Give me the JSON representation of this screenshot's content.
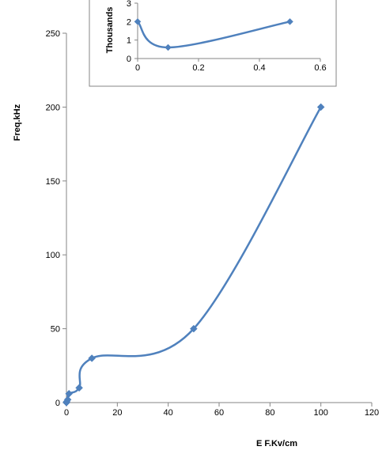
{
  "chart_data": [
    {
      "type": "line",
      "xlabel": "E F.Kv/cm",
      "ylabel": "Freq.kHz",
      "xlim": [
        0,
        120
      ],
      "ylim": [
        0,
        250
      ],
      "x_ticks": [
        "0",
        "20",
        "40",
        "60",
        "80",
        "100",
        "120"
      ],
      "y_ticks": [
        "0",
        "50",
        "100",
        "150",
        "200",
        "250"
      ],
      "grid": false,
      "legend": "none",
      "series": [
        {
          "color": "#4f81bd",
          "marker": "diamond",
          "smooth": true,
          "points": [
            {
              "x": 0,
              "y": 0
            },
            {
              "x": 0.1,
              "y": 0.6
            },
            {
              "x": 0.5,
              "y": 2
            },
            {
              "x": 1,
              "y": 6
            },
            {
              "x": 5,
              "y": 10
            },
            {
              "x": 10,
              "y": 30
            },
            {
              "x": 50,
              "y": 50
            },
            {
              "x": 100,
              "y": 200
            }
          ]
        }
      ]
    },
    {
      "type": "line",
      "inset": true,
      "xlabel": "",
      "ylabel": "Thousands",
      "xlim": [
        0,
        0.6
      ],
      "ylim": [
        0,
        3
      ],
      "x_ticks": [
        "0",
        "0.2",
        "0.4",
        "0.6"
      ],
      "y_ticks": [
        "0",
        "1",
        "2",
        "3"
      ],
      "grid": false,
      "legend": "none",
      "series": [
        {
          "color": "#4f81bd",
          "marker": "diamond",
          "smooth": true,
          "points": [
            {
              "x": 0,
              "y": 2
            },
            {
              "x": 0.1,
              "y": 0.6
            },
            {
              "x": 0.5,
              "y": 2
            }
          ]
        }
      ]
    }
  ]
}
